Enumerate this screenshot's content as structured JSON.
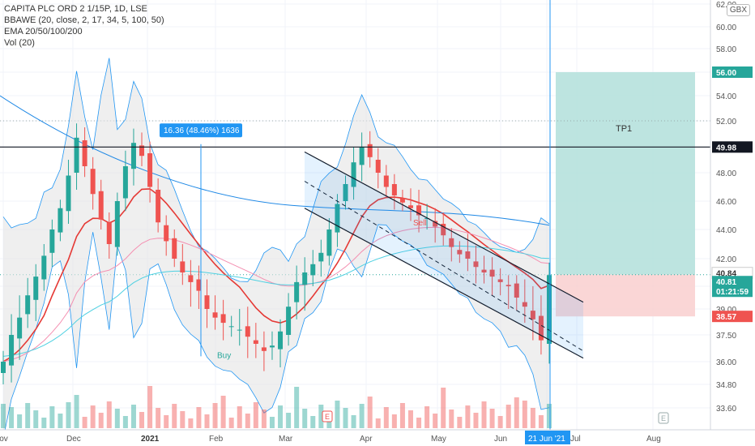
{
  "header": {
    "symbol_line": "CAPITA PLC ORD 2 1/15P, 1D, LSE",
    "indicators": [
      "BBAWE (20, close, 2, 17, 34, 5, 100, 50)",
      "EMA 20/50/100/200",
      "Vol (20)"
    ],
    "currency_badge": "GBX"
  },
  "chart_data": {
    "type": "candlestick",
    "ylim": [
      32.8,
      62.2
    ],
    "y_ticks": [
      "62.00",
      "60.00",
      "58.00",
      "56.00",
      "54.00",
      "52.00",
      "50.00",
      "48.00",
      "46.00",
      "44.00",
      "42.00",
      "40.00",
      "39.00",
      "37.50",
      "36.00",
      "34.80",
      "33.60"
    ],
    "y_tick_values": [
      62,
      60,
      58,
      56,
      54,
      52,
      50,
      48,
      46,
      44,
      42,
      40,
      39,
      37.5,
      36,
      34.8,
      33.6
    ],
    "x_ticks": [
      "Nov",
      "Dec",
      "2021",
      "Feb",
      "Mar",
      "Apr",
      "May",
      "Jun",
      "21 Jun '21",
      "Jul",
      "Aug"
    ],
    "price_labels": [
      {
        "text": "56.00",
        "value": 56.0,
        "color": "#26a69a"
      },
      {
        "text": "49.98",
        "value": 49.98,
        "color": "#131722"
      },
      {
        "text": "40.84",
        "value": 40.84,
        "color": "#ffffff"
      },
      {
        "text": "40.81",
        "value": 40.81,
        "color": "#26a69a"
      },
      {
        "text": "01:21:59",
        "value": 40.1,
        "color": "#26a69a"
      },
      {
        "text": "38.57",
        "value": 38.57,
        "color": "#ef5350"
      }
    ],
    "annotations": {
      "measure_label": "16.36 (48.46%) 1636",
      "tp_label": "TP1",
      "sell_label": "Sell",
      "buy_label": "Buy",
      "event_marker": "E"
    },
    "levels": {
      "resistance": 49.98,
      "take_profit": 56.0,
      "entry": 40.84,
      "stop": 38.57
    },
    "series_close_approx": [
      36.0,
      37.5,
      38.5,
      39.6,
      40.7,
      42.2,
      44.0,
      45.5,
      47.8,
      50.7,
      48.5,
      46.5,
      44.7,
      43.0,
      46.0,
      48.5,
      50.3,
      49.3,
      47.0,
      44.5,
      43.2,
      42.0,
      41.0,
      40.3,
      39.8,
      39.0,
      38.5,
      38.2,
      38.0,
      37.8,
      37.4,
      37.0,
      36.6,
      36.9,
      37.7,
      39.1,
      40.3,
      41.0,
      41.6,
      42.4,
      44.0,
      45.8,
      47.2,
      48.8,
      50.0,
      49.2,
      48.0,
      47.0,
      46.4,
      45.9,
      45.5,
      45.0,
      44.8,
      44.2,
      43.6,
      42.8,
      42.3,
      42.0,
      41.4,
      41.0,
      40.7,
      40.3,
      40.0,
      39.5,
      39.1,
      38.4,
      37.2,
      40.81
    ]
  },
  "colors": {
    "up": "#26a69a",
    "down": "#ef5350",
    "channel": "#131722",
    "bb_fill": "#e5e5e5",
    "bb_line": "#2196f3",
    "tp_zone": "#b2dfdb",
    "sl_zone": "#f9cfcf",
    "current_line": "#2196f3"
  }
}
